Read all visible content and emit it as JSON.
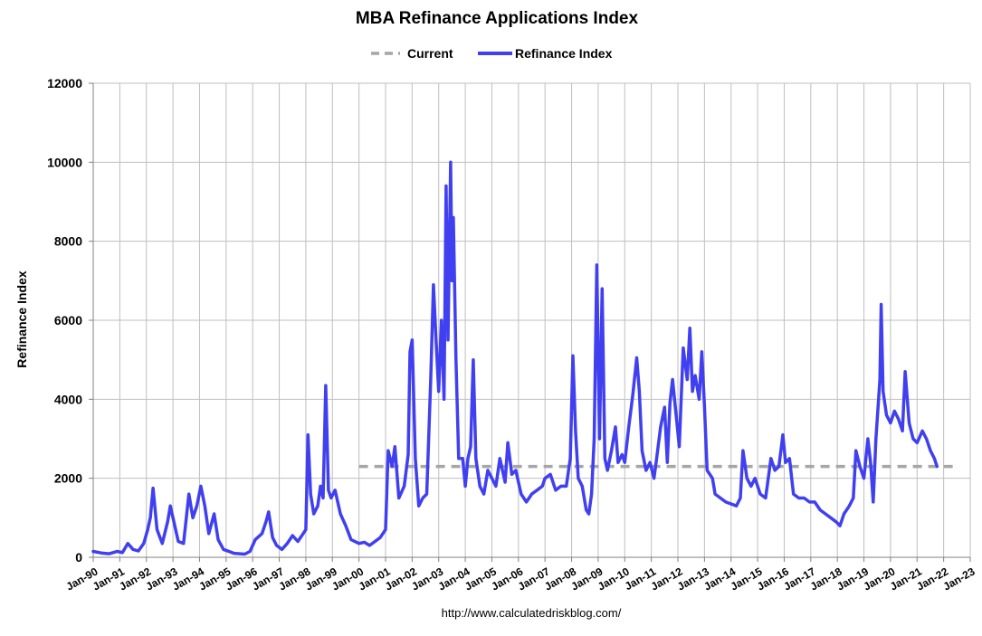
{
  "chart_data": {
    "type": "line",
    "title": "MBA Refinance Applications Index",
    "ylabel": "Refinance Index",
    "xlabel": "",
    "ylim": [
      0,
      12000
    ],
    "yticks": [
      "0",
      "2000",
      "4000",
      "6000",
      "8000",
      "10000",
      "12000"
    ],
    "xticks": [
      "Jan-90",
      "Jan-91",
      "Jan-92",
      "Jan-93",
      "Jan-94",
      "Jan-95",
      "Jan-96",
      "Jan-97",
      "Jan-98",
      "Jan-99",
      "Jan-00",
      "Jan-01",
      "Jan-02",
      "Jan-03",
      "Jan-04",
      "Jan-05",
      "Jan-06",
      "Jan-07",
      "Jan-08",
      "Jan-09",
      "Jan-10",
      "Jan-11",
      "Jan-12",
      "Jan-13",
      "Jan-14",
      "Jan-15",
      "Jan-16",
      "Jan-17",
      "Jan-18",
      "Jan-19",
      "Jan-20",
      "Jan-21",
      "Jan-22",
      "Jan-23"
    ],
    "xlim": [
      "Jan-90",
      "Jan-23"
    ],
    "grid": true,
    "legend_position": "top-center",
    "series": [
      {
        "name": "Current",
        "style": "dashed",
        "color": "#a6a6a6",
        "points": [
          [
            10.0,
            2300
          ],
          [
            32.5,
            2300
          ]
        ]
      },
      {
        "name": "Refinance Index",
        "style": "solid",
        "color": "#4040f0",
        "points": [
          [
            0.0,
            150
          ],
          [
            0.3,
            110
          ],
          [
            0.6,
            90
          ],
          [
            0.9,
            150
          ],
          [
            1.1,
            120
          ],
          [
            1.3,
            350
          ],
          [
            1.5,
            200
          ],
          [
            1.7,
            160
          ],
          [
            1.9,
            350
          ],
          [
            2.05,
            700
          ],
          [
            2.15,
            1000
          ],
          [
            2.25,
            1750
          ],
          [
            2.4,
            700
          ],
          [
            2.6,
            350
          ],
          [
            2.8,
            900
          ],
          [
            2.9,
            1300
          ],
          [
            3.0,
            1000
          ],
          [
            3.2,
            400
          ],
          [
            3.4,
            350
          ],
          [
            3.6,
            1600
          ],
          [
            3.75,
            1000
          ],
          [
            3.9,
            1300
          ],
          [
            4.05,
            1800
          ],
          [
            4.2,
            1300
          ],
          [
            4.35,
            600
          ],
          [
            4.55,
            1100
          ],
          [
            4.7,
            450
          ],
          [
            4.9,
            200
          ],
          [
            5.3,
            100
          ],
          [
            5.7,
            80
          ],
          [
            5.9,
            150
          ],
          [
            6.1,
            450
          ],
          [
            6.35,
            600
          ],
          [
            6.5,
            900
          ],
          [
            6.6,
            1150
          ],
          [
            6.75,
            500
          ],
          [
            6.9,
            300
          ],
          [
            7.1,
            200
          ],
          [
            7.3,
            350
          ],
          [
            7.5,
            550
          ],
          [
            7.7,
            400
          ],
          [
            7.9,
            600
          ],
          [
            8.0,
            700
          ],
          [
            8.08,
            3100
          ],
          [
            8.18,
            1600
          ],
          [
            8.3,
            1100
          ],
          [
            8.45,
            1300
          ],
          [
            8.55,
            1800
          ],
          [
            8.65,
            1500
          ],
          [
            8.75,
            4350
          ],
          [
            8.85,
            1700
          ],
          [
            8.95,
            1500
          ],
          [
            9.1,
            1700
          ],
          [
            9.3,
            1100
          ],
          [
            9.5,
            800
          ],
          [
            9.7,
            450
          ],
          [
            10.0,
            350
          ],
          [
            10.2,
            380
          ],
          [
            10.4,
            300
          ],
          [
            10.6,
            400
          ],
          [
            10.8,
            500
          ],
          [
            11.0,
            700
          ],
          [
            11.1,
            2700
          ],
          [
            11.25,
            2300
          ],
          [
            11.35,
            2800
          ],
          [
            11.5,
            1500
          ],
          [
            11.7,
            1800
          ],
          [
            11.85,
            2600
          ],
          [
            11.92,
            5200
          ],
          [
            12.0,
            5500
          ],
          [
            12.12,
            2500
          ],
          [
            12.25,
            1300
          ],
          [
            12.4,
            1500
          ],
          [
            12.55,
            1600
          ],
          [
            12.7,
            4500
          ],
          [
            12.8,
            6900
          ],
          [
            12.9,
            5500
          ],
          [
            13.0,
            4200
          ],
          [
            13.1,
            6000
          ],
          [
            13.2,
            4000
          ],
          [
            13.28,
            9400
          ],
          [
            13.35,
            5500
          ],
          [
            13.45,
            10000
          ],
          [
            13.5,
            7000
          ],
          [
            13.55,
            8600
          ],
          [
            13.65,
            5000
          ],
          [
            13.75,
            2500
          ],
          [
            13.9,
            2500
          ],
          [
            14.0,
            1800
          ],
          [
            14.1,
            2500
          ],
          [
            14.2,
            2800
          ],
          [
            14.3,
            5000
          ],
          [
            14.4,
            2500
          ],
          [
            14.55,
            1800
          ],
          [
            14.7,
            1600
          ],
          [
            14.85,
            2200
          ],
          [
            15.0,
            2000
          ],
          [
            15.15,
            1800
          ],
          [
            15.3,
            2500
          ],
          [
            15.5,
            1900
          ],
          [
            15.6,
            2900
          ],
          [
            15.75,
            2100
          ],
          [
            15.9,
            2200
          ],
          [
            16.1,
            1600
          ],
          [
            16.3,
            1400
          ],
          [
            16.5,
            1600
          ],
          [
            16.7,
            1700
          ],
          [
            16.9,
            1800
          ],
          [
            17.0,
            2000
          ],
          [
            17.2,
            2100
          ],
          [
            17.4,
            1700
          ],
          [
            17.6,
            1800
          ],
          [
            17.8,
            1800
          ],
          [
            17.95,
            2500
          ],
          [
            18.05,
            5100
          ],
          [
            18.15,
            3200
          ],
          [
            18.25,
            2000
          ],
          [
            18.4,
            1800
          ],
          [
            18.55,
            1200
          ],
          [
            18.65,
            1100
          ],
          [
            18.75,
            1600
          ],
          [
            18.85,
            3000
          ],
          [
            18.95,
            7400
          ],
          [
            19.05,
            3000
          ],
          [
            19.15,
            6800
          ],
          [
            19.25,
            2500
          ],
          [
            19.35,
            2200
          ],
          [
            19.5,
            2700
          ],
          [
            19.65,
            3300
          ],
          [
            19.75,
            2400
          ],
          [
            19.9,
            2600
          ],
          [
            20.0,
            2400
          ],
          [
            20.15,
            3300
          ],
          [
            20.3,
            4100
          ],
          [
            20.45,
            5050
          ],
          [
            20.55,
            4200
          ],
          [
            20.65,
            2700
          ],
          [
            20.8,
            2200
          ],
          [
            20.95,
            2400
          ],
          [
            21.1,
            2000
          ],
          [
            21.2,
            2500
          ],
          [
            21.35,
            3300
          ],
          [
            21.5,
            3800
          ],
          [
            21.6,
            2400
          ],
          [
            21.7,
            3900
          ],
          [
            21.8,
            4500
          ],
          [
            21.95,
            3500
          ],
          [
            22.05,
            2800
          ],
          [
            22.2,
            5300
          ],
          [
            22.35,
            4500
          ],
          [
            22.45,
            5800
          ],
          [
            22.55,
            4200
          ],
          [
            22.65,
            4600
          ],
          [
            22.8,
            4000
          ],
          [
            22.9,
            5200
          ],
          [
            23.0,
            3800
          ],
          [
            23.1,
            2200
          ],
          [
            23.3,
            2000
          ],
          [
            23.4,
            1600
          ],
          [
            23.6,
            1500
          ],
          [
            23.8,
            1400
          ],
          [
            24.0,
            1350
          ],
          [
            24.2,
            1300
          ],
          [
            24.35,
            1500
          ],
          [
            24.45,
            2700
          ],
          [
            24.6,
            2000
          ],
          [
            24.75,
            1800
          ],
          [
            24.9,
            2000
          ],
          [
            25.1,
            1600
          ],
          [
            25.3,
            1500
          ],
          [
            25.5,
            2500
          ],
          [
            25.65,
            2200
          ],
          [
            25.8,
            2300
          ],
          [
            25.95,
            3100
          ],
          [
            26.05,
            2400
          ],
          [
            26.2,
            2500
          ],
          [
            26.35,
            1600
          ],
          [
            26.55,
            1500
          ],
          [
            26.75,
            1500
          ],
          [
            26.95,
            1400
          ],
          [
            27.15,
            1400
          ],
          [
            27.35,
            1200
          ],
          [
            27.55,
            1100
          ],
          [
            27.75,
            1000
          ],
          [
            27.95,
            900
          ],
          [
            28.1,
            800
          ],
          [
            28.25,
            1100
          ],
          [
            28.45,
            1300
          ],
          [
            28.6,
            1500
          ],
          [
            28.7,
            2700
          ],
          [
            28.85,
            2300
          ],
          [
            29.0,
            2000
          ],
          [
            29.15,
            3000
          ],
          [
            29.25,
            2400
          ],
          [
            29.35,
            1400
          ],
          [
            29.45,
            3000
          ],
          [
            29.6,
            4500
          ],
          [
            29.65,
            6400
          ],
          [
            29.72,
            4200
          ],
          [
            29.85,
            3600
          ],
          [
            30.0,
            3400
          ],
          [
            30.15,
            3700
          ],
          [
            30.3,
            3500
          ],
          [
            30.45,
            3200
          ],
          [
            30.55,
            4700
          ],
          [
            30.7,
            3400
          ],
          [
            30.85,
            3000
          ],
          [
            31.0,
            2900
          ],
          [
            31.2,
            3200
          ],
          [
            31.35,
            3000
          ],
          [
            31.5,
            2700
          ],
          [
            31.65,
            2500
          ],
          [
            31.75,
            2300
          ]
        ]
      }
    ]
  },
  "footer": "http://www.calculatedriskblog.com/"
}
